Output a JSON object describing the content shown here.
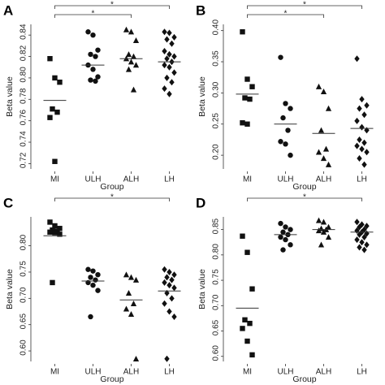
{
  "chart_data": [
    {
      "type": "strip",
      "label": "A",
      "xlabel": "Group",
      "ylabel": "Beta value",
      "categories": [
        "MI",
        "ULH",
        "ALH",
        "LH"
      ],
      "markers": [
        "square",
        "circle",
        "triangle",
        "diamond"
      ],
      "color": "#111111",
      "values": [
        [
          0.818,
          0.8,
          0.796,
          0.771,
          0.768,
          0.763,
          0.722
        ],
        [
          0.843,
          0.84,
          0.826,
          0.822,
          0.82,
          0.812,
          0.808,
          0.801,
          0.798,
          0.797
        ],
        [
          0.845,
          0.843,
          0.835,
          0.822,
          0.82,
          0.818,
          0.815,
          0.812,
          0.808,
          0.789
        ],
        [
          0.843,
          0.842,
          0.838,
          0.836,
          0.832,
          0.825,
          0.822,
          0.82,
          0.818,
          0.815,
          0.812,
          0.81,
          0.805,
          0.8,
          0.796,
          0.79,
          0.785
        ]
      ],
      "means": [
        0.779,
        0.812,
        0.818,
        0.815
      ],
      "ylim": [
        0.715,
        0.85
      ],
      "yticks": [
        0.72,
        0.74,
        0.76,
        0.78,
        {
          "value": 0.8,
          "label": "0.80"
        },
        0.82,
        0.84
      ],
      "pairs": [
        [
          "MI",
          "LH"
        ],
        [
          "MI",
          "ALH"
        ]
      ],
      "pair_labels": [
        "*",
        "*"
      ]
    },
    {
      "type": "strip",
      "label": "B",
      "xlabel": "Group",
      "ylabel": "Beta value",
      "categories": [
        "MI",
        "ULH",
        "ALH",
        "LH"
      ],
      "markers": [
        "square",
        "circle",
        "triangle",
        "diamond"
      ],
      "color": "#111111",
      "values": [
        [
          0.398,
          0.322,
          0.31,
          0.292,
          0.29,
          0.252,
          0.25
        ],
        [
          0.357,
          0.283,
          0.275,
          0.26,
          0.24,
          0.222,
          0.218,
          0.2
        ],
        [
          0.31,
          0.302,
          0.275,
          0.24,
          0.21,
          0.205,
          0.195,
          0.185
        ],
        [
          0.355,
          0.29,
          0.28,
          0.275,
          0.265,
          0.255,
          0.245,
          0.24,
          0.225,
          0.22,
          0.215,
          0.21,
          0.205,
          0.195,
          0.185
        ]
      ],
      "means": [
        0.298,
        0.25,
        0.235,
        0.243
      ],
      "ylim": [
        0.178,
        0.41
      ],
      "yticks": [
        {
          "value": 0.2,
          "label": "0.20"
        },
        0.25,
        {
          "value": 0.3,
          "label": "0.30"
        },
        0.35,
        {
          "value": 0.4,
          "label": "0.40"
        }
      ],
      "pairs": [
        [
          "MI",
          "LH"
        ],
        [
          "MI",
          "ALH"
        ]
      ],
      "pair_labels": [
        "*",
        "*"
      ]
    },
    {
      "type": "strip",
      "label": "C",
      "xlabel": "Group",
      "ylabel": "Beta value",
      "categories": [
        "MI",
        "ULH",
        "ALH",
        "LH"
      ],
      "markers": [
        "square",
        "circle",
        "triangle",
        "diamond"
      ],
      "color": "#111111",
      "values": [
        [
          0.845,
          0.838,
          0.833,
          0.83,
          0.828,
          0.826,
          0.825,
          0.822,
          0.73
        ],
        [
          0.755,
          0.752,
          0.745,
          0.74,
          0.735,
          0.73,
          0.725,
          0.715,
          0.665
        ],
        [
          0.745,
          0.74,
          0.735,
          0.71,
          0.69,
          0.68,
          0.67,
          0.585
        ],
        [
          0.755,
          0.75,
          0.745,
          0.74,
          0.735,
          0.73,
          0.725,
          0.72,
          0.71,
          0.7,
          0.69,
          0.675,
          0.665,
          0.585
        ]
      ],
      "means": [
        0.819,
        0.733,
        0.697,
        0.714
      ],
      "ylim": [
        0.58,
        0.855
      ],
      "yticks": [
        {
          "value": 0.6,
          "label": "0.60"
        },
        0.65,
        {
          "value": 0.7,
          "label": "0.70"
        },
        0.75,
        {
          "value": 0.8,
          "label": "0.80"
        }
      ],
      "pairs": [
        [
          "MI",
          "LH"
        ]
      ],
      "pair_labels": [
        "*"
      ]
    },
    {
      "type": "strip",
      "label": "D",
      "xlabel": "Group",
      "ylabel": "Beta value",
      "categories": [
        "MI",
        "ULH",
        "ALH",
        "LH"
      ],
      "markers": [
        "square",
        "circle",
        "triangle",
        "diamond"
      ],
      "color": "#111111",
      "values": [
        [
          0.837,
          0.805,
          0.733,
          0.672,
          0.665,
          0.655,
          0.63,
          0.603
        ],
        [
          0.862,
          0.855,
          0.85,
          0.845,
          0.84,
          0.835,
          0.83,
          0.82,
          0.81
        ],
        [
          0.868,
          0.865,
          0.855,
          0.852,
          0.85,
          0.848,
          0.845,
          0.835,
          0.82
        ],
        [
          0.865,
          0.86,
          0.857,
          0.855,
          0.85,
          0.848,
          0.845,
          0.842,
          0.84,
          0.835,
          0.83,
          0.825,
          0.82,
          0.815,
          0.81
        ]
      ],
      "means": [
        0.695,
        0.84,
        0.85,
        0.845
      ],
      "ylim": [
        0.59,
        0.875
      ],
      "yticks": [
        {
          "value": 0.6,
          "label": "0.60"
        },
        0.65,
        {
          "value": 0.7,
          "label": "0.70"
        },
        0.75,
        {
          "value": 0.8,
          "label": "0.80"
        },
        0.85
      ],
      "pairs": [
        [
          "MI",
          "LH"
        ]
      ],
      "pair_labels": [
        "*"
      ]
    }
  ]
}
